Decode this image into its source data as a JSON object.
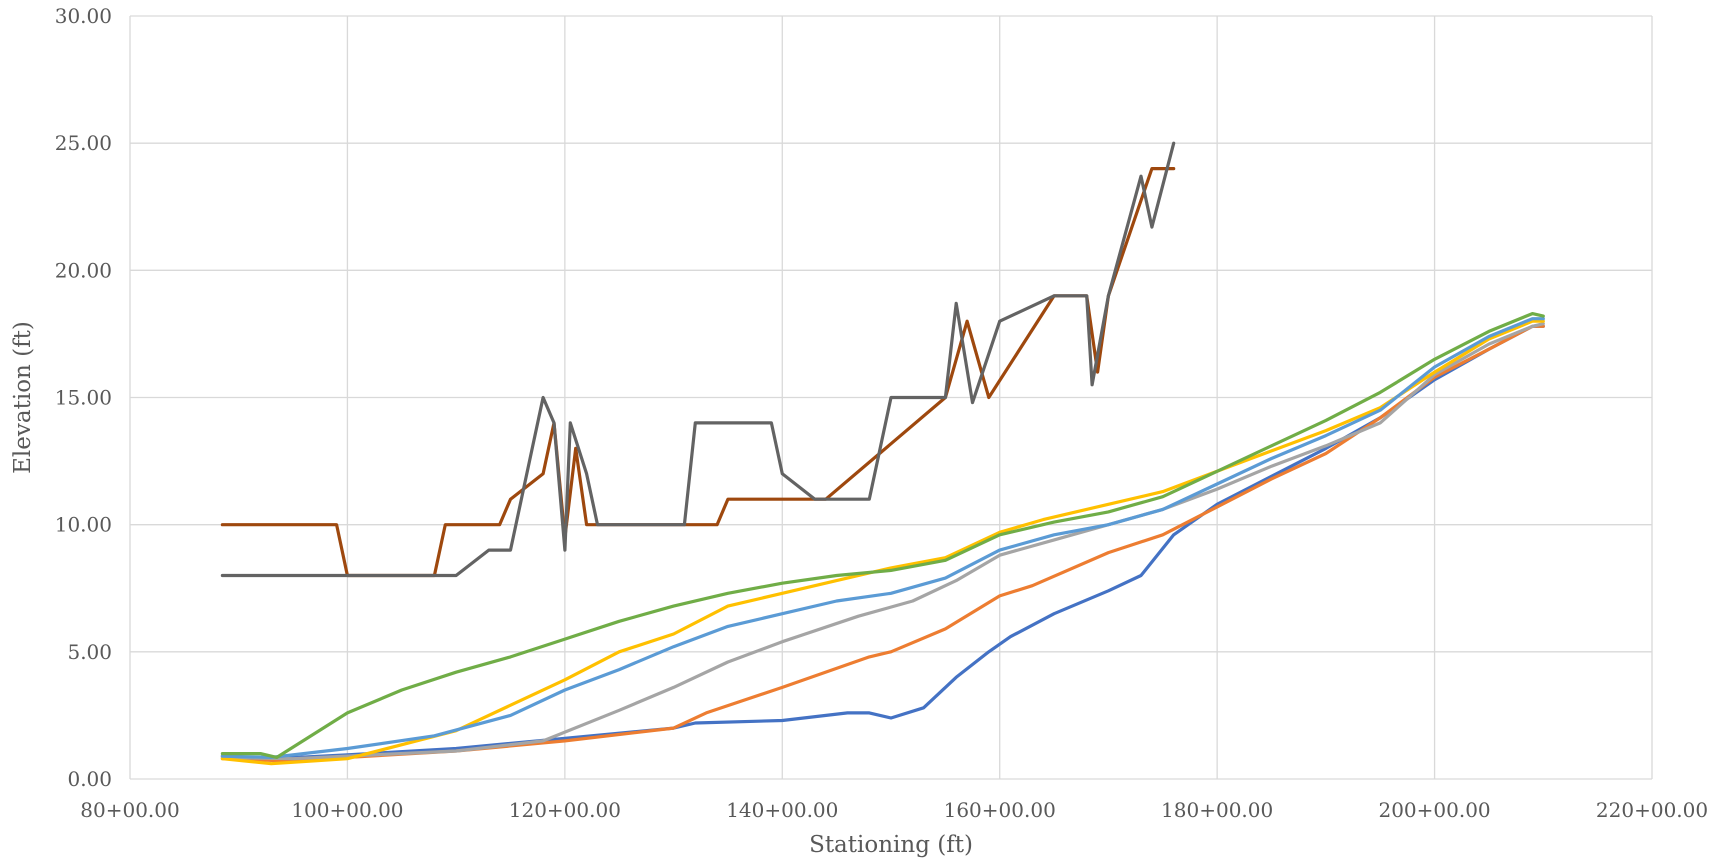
{
  "chart_data": {
    "type": "line",
    "title": "",
    "xlabel": "Stationing (ft)",
    "ylabel": "Elevation (ft)",
    "xlim": [
      8000,
      22000
    ],
    "ylim": [
      0,
      30
    ],
    "x_ticks": [
      8000,
      10000,
      12000,
      14000,
      16000,
      18000,
      20000,
      22000
    ],
    "x_tick_labels": [
      "80+00.00",
      "100+00.00",
      "120+00.00",
      "140+00.00",
      "160+00.00",
      "180+00.00",
      "200+00.00",
      "220+00.00"
    ],
    "y_ticks": [
      0,
      5,
      10,
      15,
      20,
      25,
      30
    ],
    "y_tick_labels": [
      "0.00",
      "5.00",
      "10.00",
      "15.00",
      "20.00",
      "25.00",
      "30.00"
    ],
    "grid": true,
    "legend": "none",
    "series": [
      {
        "color": "#4472C4",
        "x": [
          8850,
          9300,
          10000,
          11000,
          12000,
          13000,
          13200,
          14000,
          14600,
          14800,
          15000,
          15300,
          15600,
          15900,
          16100,
          16500,
          17000,
          17300,
          17600,
          18000,
          18500,
          19000,
          19500,
          20000,
          20500,
          20900,
          21000
        ],
        "y": [
          0.9,
          0.8,
          0.95,
          1.2,
          1.6,
          2.0,
          2.2,
          2.3,
          2.6,
          2.6,
          2.4,
          2.8,
          4.0,
          5.0,
          5.6,
          6.5,
          7.4,
          8.0,
          9.6,
          10.8,
          11.9,
          13.0,
          14.2,
          15.7,
          16.9,
          17.8,
          17.8
        ]
      },
      {
        "color": "#ED7D31",
        "x": [
          8850,
          9500,
          10000,
          11000,
          12000,
          13000,
          13300,
          14000,
          14800,
          15000,
          15500,
          16000,
          16300,
          17000,
          17500,
          18000,
          18500,
          19000,
          19500,
          20000,
          20500,
          20900,
          21000
        ],
        "y": [
          0.8,
          0.7,
          0.85,
          1.1,
          1.5,
          2.0,
          2.6,
          3.6,
          4.8,
          5.0,
          5.9,
          7.2,
          7.6,
          8.9,
          9.6,
          10.7,
          11.8,
          12.8,
          14.2,
          15.8,
          16.9,
          17.8,
          17.8
        ]
      },
      {
        "color": "#A5A5A5",
        "x": [
          8850,
          9500,
          10000,
          11000,
          11800,
          12500,
          13000,
          13500,
          14000,
          14700,
          15200,
          15600,
          16000,
          16500,
          17000,
          17500,
          18000,
          18500,
          19000,
          19500,
          20000,
          20500,
          20900,
          21000
        ],
        "y": [
          0.85,
          0.8,
          0.9,
          1.1,
          1.5,
          2.7,
          3.6,
          4.6,
          5.4,
          6.4,
          7.0,
          7.8,
          8.8,
          9.4,
          10.0,
          10.6,
          11.4,
          12.3,
          13.1,
          14.0,
          15.9,
          17.1,
          17.8,
          17.9
        ]
      },
      {
        "color": "#FFC000",
        "x": [
          8850,
          9300,
          10000,
          11000,
          12000,
          12500,
          13000,
          13500,
          14000,
          14500,
          15000,
          15500,
          16000,
          16400,
          17000,
          17500,
          18000,
          18500,
          19000,
          19500,
          20000,
          20500,
          20900,
          21000
        ],
        "y": [
          0.8,
          0.6,
          0.8,
          1.9,
          3.9,
          5.0,
          5.7,
          6.8,
          7.3,
          7.8,
          8.3,
          8.7,
          9.7,
          10.2,
          10.8,
          11.3,
          12.1,
          12.9,
          13.7,
          14.6,
          16.0,
          17.3,
          18.0,
          18.0
        ]
      },
      {
        "color": "#5B9BD5",
        "x": [
          8850,
          9300,
          10000,
          10800,
          11500,
          12000,
          12500,
          13000,
          13500,
          14000,
          14500,
          15000,
          15500,
          16000,
          16500,
          17000,
          17500,
          18000,
          18500,
          19000,
          19500,
          20000,
          20500,
          20900,
          21000
        ],
        "y": [
          0.9,
          0.85,
          1.2,
          1.7,
          2.5,
          3.5,
          4.3,
          5.2,
          6.0,
          6.5,
          7.0,
          7.3,
          7.9,
          9.0,
          9.6,
          10.0,
          10.6,
          11.6,
          12.6,
          13.5,
          14.5,
          16.2,
          17.4,
          18.1,
          18.1
        ]
      },
      {
        "color": "#70AD47",
        "x": [
          8850,
          9200,
          9350,
          10000,
          10500,
          11000,
          11500,
          12000,
          12500,
          13000,
          13500,
          14000,
          14500,
          15000,
          15500,
          16000,
          16500,
          17000,
          17500,
          18000,
          18500,
          19000,
          19500,
          20000,
          20500,
          20900,
          21000
        ],
        "y": [
          1.0,
          1.0,
          0.85,
          2.6,
          3.5,
          4.2,
          4.8,
          5.5,
          6.2,
          6.8,
          7.3,
          7.7,
          8.0,
          8.2,
          8.6,
          9.6,
          10.1,
          10.5,
          11.1,
          12.1,
          13.1,
          14.1,
          15.2,
          16.5,
          17.6,
          18.3,
          18.2
        ]
      },
      {
        "color": "#9E480E",
        "x": [
          8850,
          9900,
          10000,
          10800,
          10900,
          11400,
          11500,
          11800,
          11900,
          12000,
          12100,
          12200,
          12300,
          13400,
          13500,
          14400,
          15500,
          15700,
          15900,
          16500,
          16800,
          16900,
          17000,
          17400,
          17600
        ],
        "y": [
          10,
          10,
          8,
          8,
          10,
          10,
          11,
          12,
          14,
          9.5,
          13,
          10,
          10,
          10,
          11,
          11,
          15,
          18,
          15,
          19,
          19,
          16,
          19,
          24,
          24
        ]
      },
      {
        "color": "#636363",
        "x": [
          8850,
          10800,
          11000,
          11300,
          11500,
          11700,
          11800,
          11900,
          12000,
          12050,
          12200,
          12300,
          13100,
          13200,
          13900,
          14000,
          14300,
          14800,
          15000,
          15500,
          15600,
          15750,
          16000,
          16500,
          16800,
          16850,
          17000,
          17300,
          17400,
          17600
        ],
        "y": [
          8,
          8,
          8,
          9,
          9,
          13,
          15,
          14,
          9,
          14,
          12,
          10,
          10,
          14,
          14,
          12,
          11,
          11,
          15,
          15,
          18.7,
          14.8,
          18,
          19,
          19,
          15.5,
          19,
          23.7,
          21.7,
          25
        ]
      }
    ]
  }
}
